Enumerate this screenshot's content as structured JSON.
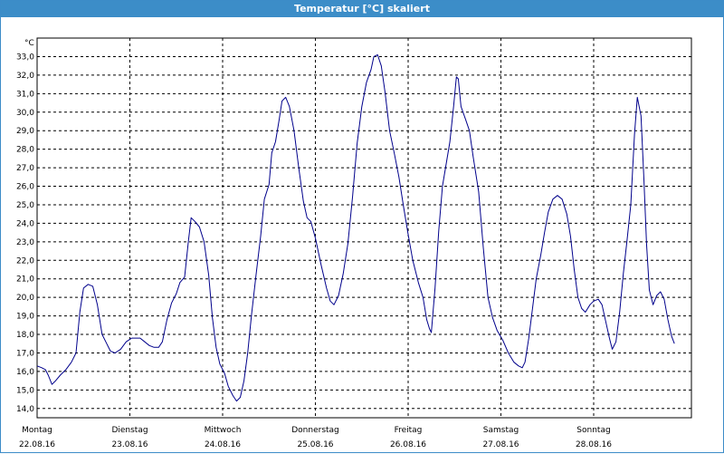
{
  "window": {
    "title": "Temperatur [°C] skaliert"
  },
  "colors": {
    "titlebar": "#3c8dc8",
    "line": "#00008b",
    "grid": "#000000"
  },
  "chart_data": {
    "type": "line",
    "title": "Temperatur [°C] skaliert",
    "ylabel": "°C",
    "ylim": [
      13.5,
      34.0
    ],
    "yticks": [
      "14,0",
      "15,0",
      "16,0",
      "17,0",
      "18,0",
      "19,0",
      "20,0",
      "21,0",
      "22,0",
      "23,0",
      "24,0",
      "25,0",
      "26,0",
      "27,0",
      "28,0",
      "29,0",
      "30,0",
      "31,0",
      "32,0",
      "33,0"
    ],
    "x_days": [
      {
        "day": "Montag",
        "date": "22.08.16"
      },
      {
        "day": "Dienstag",
        "date": "23.08.16"
      },
      {
        "day": "Mittwoch",
        "date": "24.08.16"
      },
      {
        "day": "Donnerstag",
        "date": "25.08.16"
      },
      {
        "day": "Freitag",
        "date": "26.08.16"
      },
      {
        "day": "Samstag",
        "date": "27.08.16"
      },
      {
        "day": "Sonntag",
        "date": "28.08.16"
      }
    ],
    "grid": true,
    "series": [
      {
        "points": [
          [
            0.0,
            16.3
          ],
          [
            0.05,
            16.2
          ],
          [
            0.09,
            16.1
          ],
          [
            0.12,
            15.8
          ],
          [
            0.16,
            15.3
          ],
          [
            0.2,
            15.5
          ],
          [
            0.25,
            15.8
          ],
          [
            0.31,
            16.1
          ],
          [
            0.37,
            16.5
          ],
          [
            0.42,
            17.0
          ],
          [
            0.46,
            19.2
          ],
          [
            0.5,
            20.5
          ],
          [
            0.55,
            20.7
          ],
          [
            0.6,
            20.6
          ],
          [
            0.65,
            19.6
          ],
          [
            0.7,
            18.0
          ],
          [
            0.75,
            17.5
          ],
          [
            0.79,
            17.1
          ],
          [
            0.84,
            17.0
          ],
          [
            0.9,
            17.2
          ],
          [
            0.96,
            17.6
          ],
          [
            1.02,
            17.8
          ],
          [
            1.06,
            17.8
          ],
          [
            1.11,
            17.8
          ],
          [
            1.16,
            17.6
          ],
          [
            1.21,
            17.4
          ],
          [
            1.26,
            17.3
          ],
          [
            1.31,
            17.3
          ],
          [
            1.35,
            17.6
          ],
          [
            1.4,
            18.8
          ],
          [
            1.45,
            19.7
          ],
          [
            1.5,
            20.2
          ],
          [
            1.54,
            20.8
          ],
          [
            1.59,
            21.1
          ],
          [
            1.63,
            23.0
          ],
          [
            1.66,
            24.3
          ],
          [
            1.7,
            24.1
          ],
          [
            1.75,
            23.8
          ],
          [
            1.8,
            23.0
          ],
          [
            1.85,
            21.2
          ],
          [
            1.89,
            18.9
          ],
          [
            1.93,
            17.3
          ],
          [
            1.97,
            16.4
          ],
          [
            2.02,
            15.9
          ],
          [
            2.06,
            15.2
          ],
          [
            2.11,
            14.7
          ],
          [
            2.15,
            14.4
          ],
          [
            2.19,
            14.6
          ],
          [
            2.23,
            15.5
          ],
          [
            2.27,
            17.0
          ],
          [
            2.31,
            19.0
          ],
          [
            2.36,
            21.2
          ],
          [
            2.41,
            23.3
          ],
          [
            2.45,
            25.3
          ],
          [
            2.5,
            26.1
          ],
          [
            2.53,
            27.8
          ],
          [
            2.57,
            28.4
          ],
          [
            2.61,
            29.6
          ],
          [
            2.64,
            30.6
          ],
          [
            2.68,
            30.8
          ],
          [
            2.72,
            30.3
          ],
          [
            2.77,
            29.0
          ],
          [
            2.82,
            27.0
          ],
          [
            2.87,
            25.2
          ],
          [
            2.91,
            24.3
          ],
          [
            2.95,
            24.1
          ],
          [
            3.0,
            23.2
          ],
          [
            3.06,
            21.8
          ],
          [
            3.12,
            20.5
          ],
          [
            3.16,
            19.8
          ],
          [
            3.2,
            19.6
          ],
          [
            3.25,
            20.1
          ],
          [
            3.3,
            21.3
          ],
          [
            3.35,
            22.9
          ],
          [
            3.4,
            25.4
          ],
          [
            3.45,
            28.3
          ],
          [
            3.5,
            30.3
          ],
          [
            3.55,
            31.6
          ],
          [
            3.6,
            32.3
          ],
          [
            3.63,
            33.0
          ],
          [
            3.67,
            33.1
          ],
          [
            3.71,
            32.5
          ],
          [
            3.75,
            31.1
          ],
          [
            3.8,
            29.0
          ],
          [
            3.85,
            27.8
          ],
          [
            3.9,
            26.5
          ],
          [
            3.95,
            24.9
          ],
          [
            4.0,
            23.4
          ],
          [
            4.05,
            22.0
          ],
          [
            4.11,
            20.8
          ],
          [
            4.16,
            20.0
          ],
          [
            4.2,
            18.8
          ],
          [
            4.23,
            18.3
          ],
          [
            4.25,
            18.1
          ],
          [
            4.29,
            20.5
          ],
          [
            4.33,
            23.6
          ],
          [
            4.37,
            26.0
          ],
          [
            4.41,
            27.2
          ],
          [
            4.45,
            28.4
          ],
          [
            4.49,
            30.3
          ],
          [
            4.52,
            31.9
          ],
          [
            4.54,
            31.8
          ],
          [
            4.57,
            30.3
          ],
          [
            4.62,
            29.6
          ],
          [
            4.66,
            29.0
          ],
          [
            4.7,
            27.6
          ],
          [
            4.76,
            25.7
          ],
          [
            4.81,
            22.7
          ],
          [
            4.86,
            20.0
          ],
          [
            4.91,
            18.9
          ],
          [
            4.96,
            18.2
          ],
          [
            5.02,
            17.7
          ],
          [
            5.08,
            17.0
          ],
          [
            5.14,
            16.5
          ],
          [
            5.19,
            16.3
          ],
          [
            5.23,
            16.2
          ],
          [
            5.26,
            16.5
          ],
          [
            5.3,
            17.8
          ],
          [
            5.34,
            19.4
          ],
          [
            5.38,
            21.0
          ],
          [
            5.43,
            22.3
          ],
          [
            5.47,
            23.5
          ],
          [
            5.51,
            24.6
          ],
          [
            5.56,
            25.3
          ],
          [
            5.61,
            25.5
          ],
          [
            5.66,
            25.3
          ],
          [
            5.71,
            24.5
          ],
          [
            5.75,
            23.3
          ],
          [
            5.79,
            21.5
          ],
          [
            5.83,
            20.0
          ],
          [
            5.87,
            19.4
          ],
          [
            5.91,
            19.2
          ],
          [
            5.96,
            19.6
          ],
          [
            6.0,
            19.8
          ],
          [
            6.05,
            19.9
          ],
          [
            6.09,
            19.6
          ],
          [
            6.13,
            18.7
          ],
          [
            6.17,
            17.8
          ],
          [
            6.2,
            17.2
          ],
          [
            6.24,
            17.6
          ],
          [
            6.28,
            19.2
          ],
          [
            6.32,
            21.3
          ],
          [
            6.36,
            23.1
          ],
          [
            6.4,
            25.0
          ],
          [
            6.44,
            28.8
          ],
          [
            6.47,
            30.8
          ],
          [
            6.51,
            29.8
          ],
          [
            6.54,
            26.5
          ],
          [
            6.57,
            22.9
          ],
          [
            6.6,
            20.4
          ],
          [
            6.64,
            19.6
          ],
          [
            6.68,
            20.1
          ],
          [
            6.72,
            20.3
          ],
          [
            6.76,
            19.9
          ],
          [
            6.8,
            18.8
          ],
          [
            6.84,
            17.9
          ],
          [
            6.87,
            17.5
          ]
        ]
      }
    ]
  }
}
